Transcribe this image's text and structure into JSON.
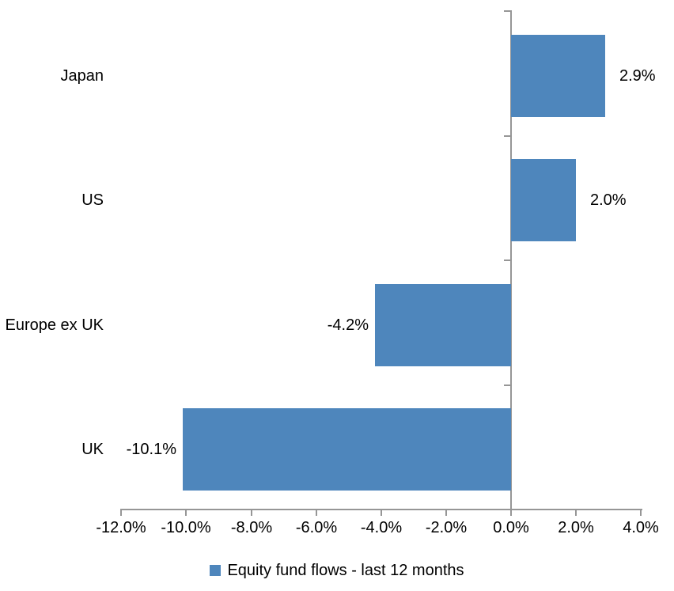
{
  "chart_data": {
    "type": "bar",
    "orientation": "horizontal",
    "title": "",
    "categories": [
      "Japan",
      "US",
      "Europe ex UK",
      "UK"
    ],
    "series": [
      {
        "name": "Equity fund flows - last 12 months",
        "values": [
          2.9,
          2.0,
          -4.2,
          -10.1
        ],
        "value_labels": [
          "2.9%",
          "2.0%",
          "-4.2%",
          "-10.1%"
        ]
      }
    ],
    "xlabel": "",
    "ylabel": "",
    "xlim": [
      -12,
      4
    ],
    "x_ticks": [
      -12,
      -10,
      -8,
      -6,
      -4,
      -2,
      0,
      2,
      4
    ],
    "x_tick_labels": [
      "-12.0%",
      "-10.0%",
      "-8.0%",
      "-6.0%",
      "-4.0%",
      "-2.0%",
      "0.0%",
      "2.0%",
      "4.0%"
    ],
    "grid": false,
    "legend_position": "bottom",
    "legend": [
      {
        "label": "Equity fund flows - last 12 months",
        "color": "#4E86BC"
      }
    ],
    "colors": {
      "bar": "#4E86BC",
      "axis": "#969696",
      "text": "#000000",
      "background": "#FFFFFF"
    }
  }
}
